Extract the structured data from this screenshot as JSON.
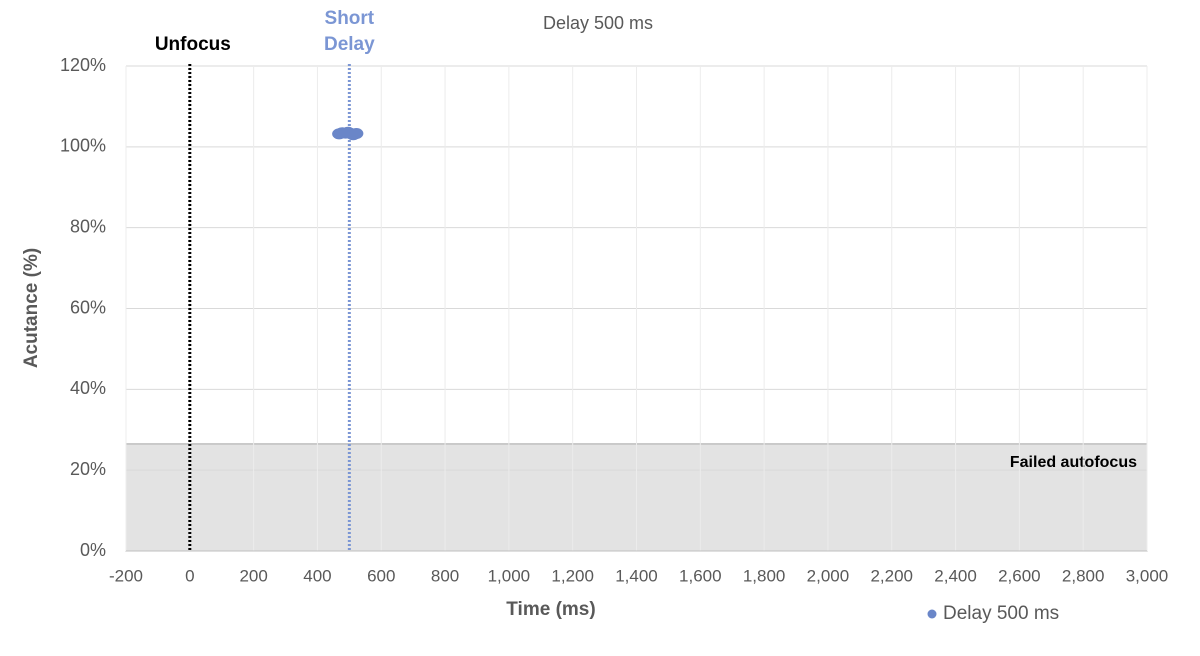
{
  "chart_data": {
    "type": "scatter",
    "title": "Delay 500 ms",
    "x_label": "Time (ms)",
    "y_label": "Acutance (%)",
    "series": [
      {
        "name": "Delay 500 ms",
        "color": "#6a86c8",
        "x": [
          468,
          478,
          488,
          496,
          504,
          512,
          522
        ],
        "values": [
          103.2,
          103.5,
          103.4,
          103.6,
          103.3,
          103.0,
          103.3
        ]
      }
    ],
    "xlim": [
      -200,
      3000
    ],
    "ylim": [
      0,
      120
    ],
    "xticks": [
      -200,
      0,
      200,
      400,
      600,
      800,
      {
        "value": 1000,
        "label": "1,000"
      },
      {
        "value": 1200,
        "label": "1,200"
      },
      {
        "value": 1400,
        "label": "1,400"
      },
      {
        "value": 1600,
        "label": "1,600"
      },
      {
        "value": 1800,
        "label": "1,800"
      },
      {
        "value": 2000,
        "label": "2,000"
      },
      {
        "value": 2200,
        "label": "2,200"
      },
      {
        "value": 2400,
        "label": "2,400"
      },
      {
        "value": 2600,
        "label": "2,600"
      },
      {
        "value": 2800,
        "label": "2,800"
      },
      {
        "value": 3000,
        "label": "3,000"
      }
    ],
    "yticks": [
      {
        "value": 0,
        "label": "0%"
      },
      {
        "value": 20,
        "label": "20%"
      },
      {
        "value": 40,
        "label": "40%"
      },
      {
        "value": 60,
        "label": "60%"
      },
      {
        "value": 80,
        "label": "80%"
      },
      {
        "value": 100,
        "label": "100%"
      },
      {
        "value": 120,
        "label": "120%"
      }
    ],
    "grid": true,
    "legend": "bottom-right",
    "reference_lines": [
      {
        "x": 0,
        "label": "Unfocus",
        "color": "#000000"
      },
      {
        "x": 500,
        "label": "Short Delay",
        "color": "#7b96d4"
      }
    ],
    "shaded_region": {
      "ylim": [
        0,
        26.5
      ],
      "label": "Failed autofocus",
      "color": "#e3e3e3"
    }
  }
}
